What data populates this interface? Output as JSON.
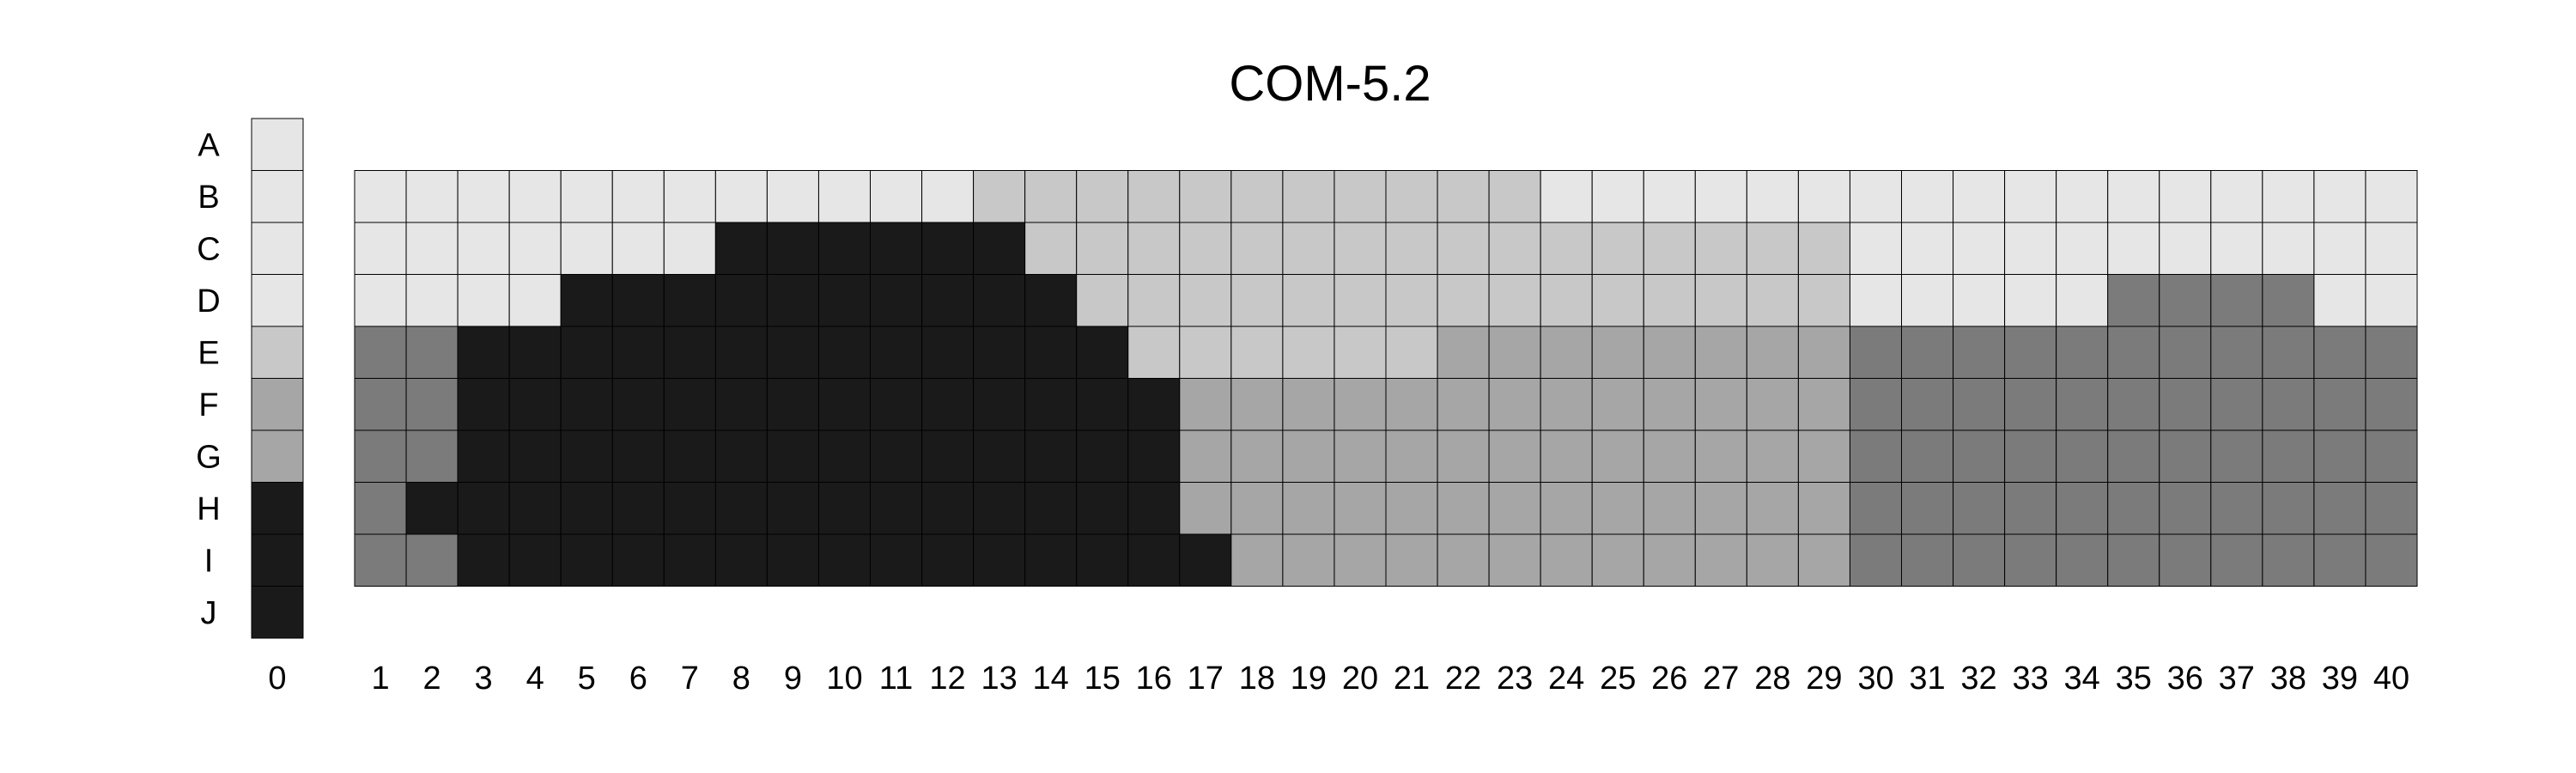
{
  "chart_data": {
    "type": "heatmap",
    "title": "COM-5.2",
    "xlabel": "",
    "ylabel": "",
    "grid": true,
    "row_labels": [
      "A",
      "B",
      "C",
      "D",
      "E",
      "F",
      "G",
      "H",
      "I",
      "J"
    ],
    "reference_column": {
      "label": "0",
      "level_colors": [
        "#e6e6e6",
        "#e6e6e6",
        "#e6e6e6",
        "#e6e6e6",
        "#c8c8c8",
        "#a6a6a6",
        "#a6a6a6",
        "#1a1a1a",
        "#1a1a1a",
        "#1a1a1a"
      ]
    },
    "grid_rows": [
      "B",
      "C",
      "D",
      "E",
      "F",
      "G",
      "H",
      "I"
    ],
    "columns": [
      1,
      2,
      3,
      4,
      5,
      6,
      7,
      8,
      9,
      10,
      11,
      12,
      13,
      14,
      15,
      16,
      17,
      18,
      19,
      20,
      21,
      22,
      23,
      24,
      25,
      26,
      27,
      28,
      29,
      30,
      31,
      32,
      33,
      34,
      35,
      36,
      37,
      38,
      39,
      40
    ],
    "colors": {
      "A": "#e6e6e6",
      "B": "#e6e6e6",
      "C": "#e6e6e6",
      "D": "#e6e6e6",
      "E": "#c8c8c8",
      "F": "#a6a6a6",
      "G": "#a6a6a6",
      "H": "#1a1a1a",
      "I": "#1a1a1a",
      "J": "#1a1a1a",
      "mid": "#7b7b7b"
    },
    "cells": [
      [
        "B",
        "B",
        "B",
        "B",
        "B",
        "B",
        "B",
        "B",
        "B",
        "B",
        "B",
        "B",
        "E",
        "E",
        "E",
        "E",
        "E",
        "E",
        "E",
        "E",
        "E",
        "E",
        "E",
        "B",
        "B",
        "B",
        "B",
        "B",
        "B",
        "B",
        "B",
        "B",
        "B",
        "B",
        "B",
        "B",
        "B",
        "B",
        "B",
        "B"
      ],
      [
        "B",
        "B",
        "B",
        "B",
        "B",
        "B",
        "B",
        "J",
        "J",
        "J",
        "J",
        "J",
        "J",
        "E",
        "E",
        "E",
        "E",
        "E",
        "E",
        "E",
        "E",
        "E",
        "E",
        "E",
        "E",
        "E",
        "E",
        "E",
        "E",
        "B",
        "B",
        "B",
        "B",
        "B",
        "B",
        "B",
        "B",
        "B",
        "B",
        "B"
      ],
      [
        "B",
        "B",
        "B",
        "B",
        "J",
        "J",
        "J",
        "J",
        "J",
        "J",
        "J",
        "J",
        "J",
        "J",
        "E",
        "E",
        "E",
        "E",
        "E",
        "E",
        "E",
        "E",
        "E",
        "E",
        "E",
        "E",
        "E",
        "E",
        "E",
        "B",
        "B",
        "B",
        "B",
        "B",
        "mid",
        "mid",
        "mid",
        "mid",
        "B",
        "B"
      ],
      [
        "mid",
        "mid",
        "J",
        "J",
        "J",
        "J",
        "J",
        "J",
        "J",
        "J",
        "J",
        "J",
        "J",
        "J",
        "J",
        "E",
        "E",
        "E",
        "E",
        "E",
        "E",
        "F",
        "F",
        "F",
        "F",
        "F",
        "F",
        "F",
        "F",
        "mid",
        "mid",
        "mid",
        "mid",
        "mid",
        "mid",
        "mid",
        "mid",
        "mid",
        "mid",
        "mid"
      ],
      [
        "mid",
        "mid",
        "J",
        "J",
        "J",
        "J",
        "J",
        "J",
        "J",
        "J",
        "J",
        "J",
        "J",
        "J",
        "J",
        "J",
        "F",
        "F",
        "F",
        "F",
        "F",
        "F",
        "F",
        "F",
        "F",
        "F",
        "F",
        "F",
        "F",
        "mid",
        "mid",
        "mid",
        "mid",
        "mid",
        "mid",
        "mid",
        "mid",
        "mid",
        "mid",
        "mid"
      ],
      [
        "mid",
        "mid",
        "J",
        "J",
        "J",
        "J",
        "J",
        "J",
        "J",
        "J",
        "J",
        "J",
        "J",
        "J",
        "J",
        "J",
        "F",
        "F",
        "F",
        "F",
        "F",
        "F",
        "F",
        "F",
        "F",
        "F",
        "F",
        "F",
        "F",
        "mid",
        "mid",
        "mid",
        "mid",
        "mid",
        "mid",
        "mid",
        "mid",
        "mid",
        "mid",
        "mid"
      ],
      [
        "mid",
        "J",
        "J",
        "J",
        "J",
        "J",
        "J",
        "J",
        "J",
        "J",
        "J",
        "J",
        "J",
        "J",
        "J",
        "J",
        "F",
        "F",
        "F",
        "F",
        "F",
        "F",
        "F",
        "F",
        "F",
        "F",
        "F",
        "F",
        "F",
        "mid",
        "mid",
        "mid",
        "mid",
        "mid",
        "mid",
        "mid",
        "mid",
        "mid",
        "mid",
        "mid"
      ],
      [
        "mid",
        "mid",
        "J",
        "J",
        "J",
        "J",
        "J",
        "J",
        "J",
        "J",
        "J",
        "J",
        "J",
        "J",
        "J",
        "J",
        "J",
        "F",
        "F",
        "F",
        "F",
        "F",
        "F",
        "F",
        "F",
        "F",
        "F",
        "F",
        "F",
        "mid",
        "mid",
        "mid",
        "mid",
        "mid",
        "mid",
        "mid",
        "mid",
        "mid",
        "mid",
        "mid"
      ]
    ]
  }
}
